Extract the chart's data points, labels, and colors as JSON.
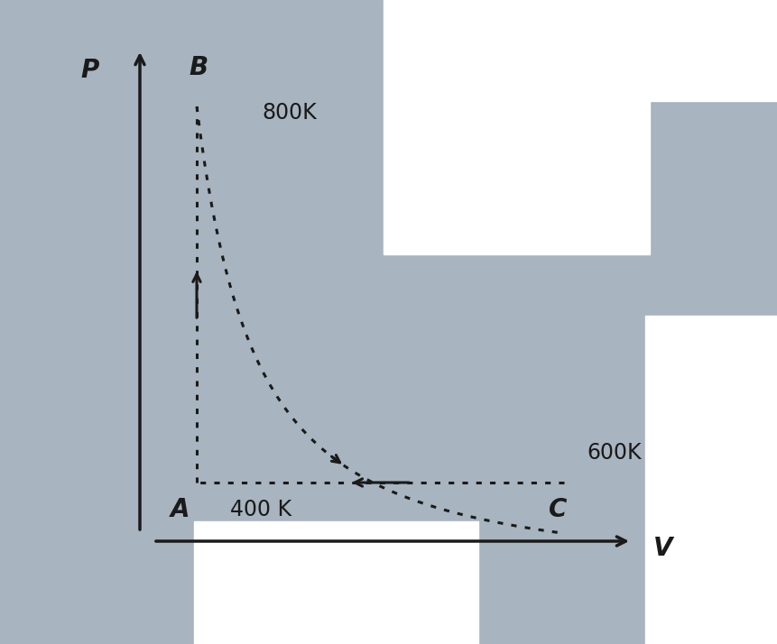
{
  "background_color": "#a8b4c0",
  "white_color": "#ffffff",
  "line_color": "#1a1a1a",
  "text_color": "#1a1a1a",
  "point_A": [
    0.28,
    0.35
  ],
  "point_B": [
    0.28,
    0.82
  ],
  "point_C": [
    0.78,
    0.35
  ],
  "label_A": "A",
  "label_B": "B",
  "label_C": "C",
  "temp_A": "400 K",
  "temp_B": "800K",
  "temp_C": "600K",
  "xlabel": "V",
  "ylabel": "P",
  "font_size_labels": 20,
  "font_size_temps": 17,
  "font_size_axis": 20,
  "line_width": 2.2,
  "figwidth": 8.61,
  "figheight": 7.14,
  "dpi": 100
}
